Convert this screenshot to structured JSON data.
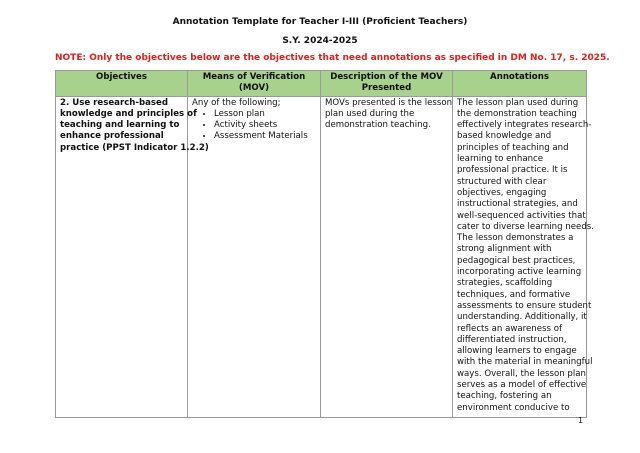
{
  "title": "Annotation Template for Teacher I-III (Proficient Teachers)",
  "school_year": "S.Y. 2024-2025",
  "note": "NOTE: Only the objectives below are the objectives that need annotations as specified in DM No. 17, s. 2025.",
  "table": {
    "headers": [
      "Objectives",
      "Means of Verification (MOV)",
      "Description of the MOV Presented",
      "Annotations"
    ],
    "row": {
      "objective_lines": [
        "2. Use research-based",
        "knowledge and principles of",
        "teaching and learning to",
        "enhance professional",
        "practice (PPST Indicator 1.2.2)"
      ],
      "mov_intro": "Any of the following;",
      "mov_items": [
        "Lesson plan",
        "Activity sheets",
        "Assessment Materials"
      ],
      "description_lines": [
        "MOVs presented is the lesson",
        "plan used during the",
        "demonstration teaching."
      ],
      "annotation_lines": [
        "The lesson plan used during",
        "the demonstration teaching",
        "effectively integrates research-",
        "based knowledge and",
        "principles of teaching and",
        "learning to enhance",
        "professional practice. It is",
        "structured with clear",
        "objectives, engaging",
        "instructional strategies, and",
        "well-sequenced activities that",
        "cater to diverse learning needs.",
        "The lesson demonstrates a",
        "strong alignment with",
        "pedagogical best practices,",
        "incorporating active learning",
        "strategies, scaffolding",
        "techniques, and formative",
        "assessments to ensure student",
        "understanding. Additionally, it",
        "reflects an awareness of",
        "differentiated instruction,",
        "allowing learners to engage",
        "with the material in meaningful",
        "ways. Overall, the lesson plan",
        "serves as a model of effective",
        "teaching, fostering an",
        "environment conducive to"
      ]
    }
  },
  "page_number": "1",
  "colors": {
    "header_bg": "#a9d18e",
    "note": "#e0201c"
  }
}
